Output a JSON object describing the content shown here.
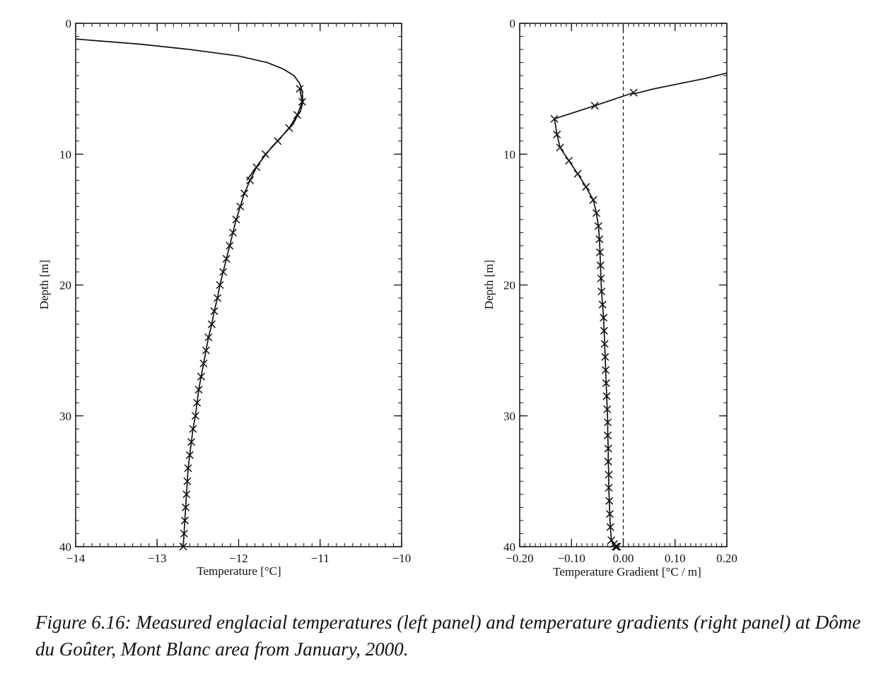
{
  "chart_data": [
    {
      "type": "line",
      "panel": "left",
      "xlabel": "Temperature [°C]",
      "ylabel": "Depth [m]",
      "xlim": [
        -14,
        -10
      ],
      "ylim": [
        40,
        0
      ],
      "y_inverted": true,
      "xticks": [
        -14,
        -13,
        -12,
        -11,
        -10
      ],
      "xtick_labels": [
        "−14",
        "−13",
        "−12",
        "−11",
        "−10"
      ],
      "yticks": [
        0,
        10,
        20,
        30,
        40
      ],
      "ytick_labels": [
        "0",
        "10",
        "20",
        "30",
        "40"
      ],
      "grid": false,
      "legend": "none",
      "series": [
        {
          "style": "curve",
          "x": [
            -14.0,
            -13.2,
            -12.6,
            -12.0,
            -11.65,
            -11.45,
            -11.32,
            -11.25,
            -11.22,
            -11.21,
            -11.24,
            -11.29,
            -11.33,
            -11.45,
            -11.6,
            -11.75,
            -11.9
          ],
          "y": [
            1.2,
            1.6,
            2.0,
            2.5,
            3.0,
            3.5,
            4.0,
            4.6,
            5.2,
            6.0,
            6.7,
            7.2,
            7.7,
            8.5,
            9.5,
            10.7,
            12.0
          ]
        },
        {
          "style": "markers-with-line",
          "x": [
            -11.25,
            -11.22,
            -11.28,
            -11.38,
            -11.52,
            -11.67,
            -11.78,
            -11.86,
            -11.93,
            -11.98,
            -12.03,
            -12.07,
            -12.11,
            -12.15,
            -12.19,
            -12.23,
            -12.26,
            -12.3,
            -12.33,
            -12.37,
            -12.4,
            -12.43,
            -12.46,
            -12.49,
            -12.51,
            -12.53,
            -12.56,
            -12.58,
            -12.6,
            -12.62,
            -12.63,
            -12.64,
            -12.65,
            -12.66,
            -12.67,
            -12.68
          ],
          "y": [
            5,
            6,
            7,
            8,
            9,
            10,
            11,
            12,
            13,
            14,
            15,
            16,
            17,
            18,
            19,
            20,
            21,
            22,
            23,
            24,
            25,
            26,
            27,
            28,
            29,
            30,
            31,
            32,
            33,
            34,
            35,
            36,
            37,
            38,
            39,
            40
          ]
        }
      ]
    },
    {
      "type": "line",
      "panel": "right",
      "xlabel": "Temperature Gradient [°C / m]",
      "ylabel": "Depth [m]",
      "xlim": [
        -0.2,
        0.2
      ],
      "ylim": [
        40,
        0
      ],
      "y_inverted": true,
      "xticks": [
        -0.2,
        -0.1,
        0.0,
        0.1,
        0.2
      ],
      "xtick_labels": [
        "−0.20",
        "−0.10",
        "0.00",
        "0.10",
        "0.20"
      ],
      "yticks": [
        0,
        10,
        20,
        30,
        40
      ],
      "ytick_labels": [
        "0",
        "10",
        "20",
        "30",
        "40"
      ],
      "reference_line_x": 0.0,
      "grid": false,
      "legend": "none",
      "series": [
        {
          "style": "curve",
          "x": [
            0.2,
            0.16,
            0.11,
            0.06,
            0.02
          ],
          "y": [
            3.8,
            4.2,
            4.6,
            5.0,
            5.4
          ]
        },
        {
          "style": "markers-with-line",
          "x": [
            0.02,
            -0.055,
            -0.133,
            -0.128,
            -0.122,
            -0.105,
            -0.088,
            -0.072,
            -0.058,
            -0.052,
            -0.048,
            -0.046,
            -0.045,
            -0.044,
            -0.043,
            -0.042,
            -0.04,
            -0.038,
            -0.037,
            -0.036,
            -0.035,
            -0.034,
            -0.033,
            -0.032,
            -0.031,
            -0.03,
            -0.03,
            -0.029,
            -0.029,
            -0.028,
            -0.028,
            -0.027,
            -0.026,
            -0.025,
            -0.023,
            -0.018,
            -0.015,
            -0.013,
            -0.012,
            -0.012
          ],
          "y": [
            5.3,
            6.3,
            7.3,
            8.5,
            9.5,
            10.5,
            11.5,
            12.5,
            13.5,
            14.5,
            15.5,
            16.5,
            17.5,
            18.5,
            19.5,
            20.5,
            21.5,
            22.5,
            23.5,
            24.5,
            25.5,
            26.5,
            27.5,
            28.5,
            29.5,
            30.5,
            31.5,
            32.5,
            33.5,
            34.5,
            35.5,
            36.5,
            37.5,
            38.5,
            39.5,
            39.8,
            40.0,
            40.0,
            40.0,
            40.0
          ]
        }
      ]
    }
  ],
  "caption": "Figure 6.16: Measured englacial temperatures (left panel) and temperature gradients (right panel) at Dôme du Goûter, Mont Blanc area from January, 2000."
}
